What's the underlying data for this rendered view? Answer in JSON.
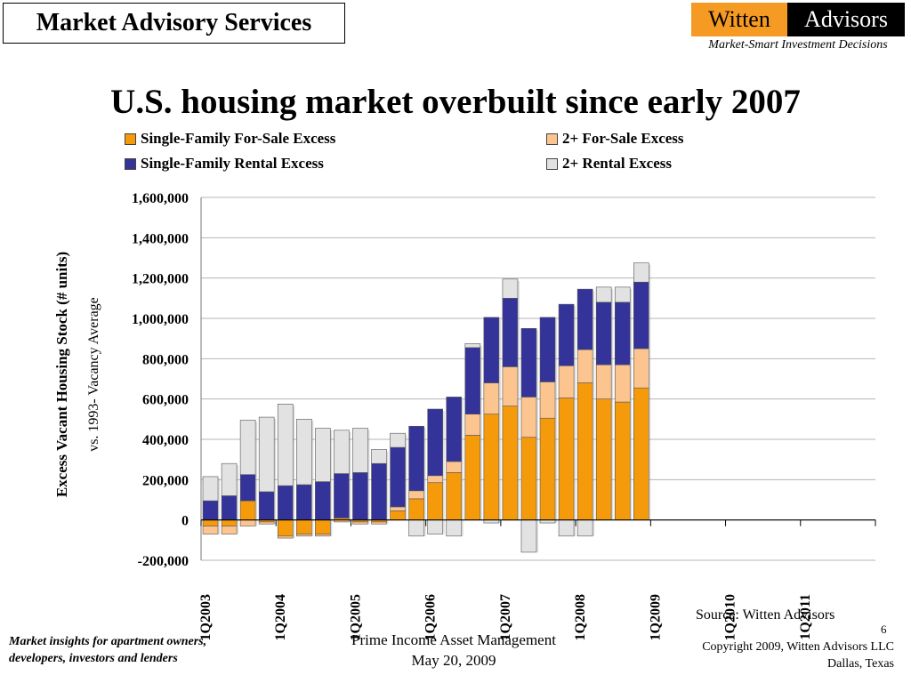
{
  "header": {
    "service": "Market Advisory Services",
    "logo_left": "Witten",
    "logo_right": "Advisors",
    "tagline": "Market-Smart Investment Decisions"
  },
  "title": "U.S. housing market overbuilt since early 2007",
  "colors": {
    "sf_for_sale": "#f59a0a",
    "sf_rental": "#33339a",
    "mf_for_sale": "#fcc48f",
    "mf_rental": "#e2e2e2"
  },
  "chart_data": {
    "type": "bar",
    "stacked": true,
    "ylabel": "Excess Vacant Housing Stock (# units)",
    "ylabel_sub": "vs. 1993- Vacancy Average",
    "ylim": [
      -200000,
      1600000
    ],
    "yticks": [
      "-200,000",
      "0",
      "200,000",
      "400,000",
      "600,000",
      "800,000",
      "1,000,000",
      "1,200,000",
      "1,400,000",
      "1,600,000"
    ],
    "ytick_values": [
      -200000,
      0,
      200000,
      400000,
      600000,
      800000,
      1000000,
      1200000,
      1400000,
      1600000
    ],
    "grid": true,
    "legend_position": "top",
    "x_labels": [
      "1Q2003",
      "1Q2004",
      "1Q2005",
      "1Q2006",
      "1Q2007",
      "1Q2008",
      "1Q2009",
      "1Q2010",
      "1Q2011"
    ],
    "categories": [
      "1Q2003",
      "2Q2003",
      "3Q2003",
      "4Q2003",
      "1Q2004",
      "2Q2004",
      "3Q2004",
      "4Q2004",
      "1Q2005",
      "2Q2005",
      "3Q2005",
      "4Q2005",
      "1Q2006",
      "2Q2006",
      "3Q2006",
      "4Q2006",
      "1Q2007",
      "2Q2007",
      "3Q2007",
      "4Q2007",
      "1Q2008",
      "2Q2008",
      "3Q2008",
      "4Q2008",
      "1Q2009",
      "2Q2009",
      "3Q2009",
      "4Q2009",
      "1Q2010",
      "2Q2010",
      "3Q2010",
      "4Q2010",
      "1Q2011",
      "2Q2011",
      "3Q2011",
      "4Q2011"
    ],
    "series": [
      {
        "name": "Single-Family For-Sale Excess",
        "color_key": "sf_for_sale",
        "values": [
          -30000,
          -30000,
          95000,
          -10000,
          -80000,
          -70000,
          -70000,
          10000,
          -10000,
          -10000,
          45000,
          105000,
          185000,
          235000,
          420000,
          525000,
          565000,
          410000,
          505000,
          605000,
          680000,
          600000,
          585000,
          655000,
          null,
          null,
          null,
          null,
          null,
          null,
          null,
          null,
          null,
          null,
          null,
          null
        ]
      },
      {
        "name": "2+ For-Sale Excess",
        "color_key": "mf_for_sale",
        "values": [
          -40000,
          -40000,
          -30000,
          -10000,
          -10000,
          -10000,
          -10000,
          -10000,
          -10000,
          -10000,
          20000,
          40000,
          35000,
          55000,
          105000,
          155000,
          195000,
          200000,
          180000,
          160000,
          165000,
          170000,
          185000,
          195000,
          null,
          null,
          null,
          null,
          null,
          null,
          null,
          null,
          null,
          null,
          null,
          null
        ]
      },
      {
        "name": "Single-Family Rental Excess",
        "color_key": "sf_rental",
        "values": [
          95000,
          120000,
          130000,
          140000,
          170000,
          175000,
          190000,
          220000,
          235000,
          280000,
          295000,
          320000,
          330000,
          320000,
          330000,
          325000,
          340000,
          340000,
          320000,
          305000,
          300000,
          310000,
          310000,
          330000,
          null,
          null,
          null,
          null,
          null,
          null,
          null,
          null,
          null,
          null,
          null,
          null
        ]
      },
      {
        "name": "2+ Rental Excess",
        "color_key": "mf_rental",
        "values": [
          120000,
          160000,
          270000,
          370000,
          405000,
          325000,
          265000,
          215000,
          220000,
          70000,
          70000,
          -80000,
          -70000,
          -80000,
          20000,
          -15000,
          95000,
          -160000,
          -15000,
          -80000,
          -80000,
          75000,
          75000,
          95000,
          null,
          null,
          null,
          null,
          null,
          null,
          null,
          null,
          null,
          null,
          null,
          null
        ]
      }
    ]
  },
  "source": "Source: Witten Advisors",
  "page_number": "6",
  "footer": {
    "left_line1": "Market insights for apartment owners,",
    "left_line2": "developers, investors and lenders",
    "center_line1": "Prime Income Asset Management",
    "center_line2": "May 20, 2009",
    "right_line1": "Copyright 2009, Witten Advisors LLC",
    "right_line2": "Dallas, Texas"
  }
}
